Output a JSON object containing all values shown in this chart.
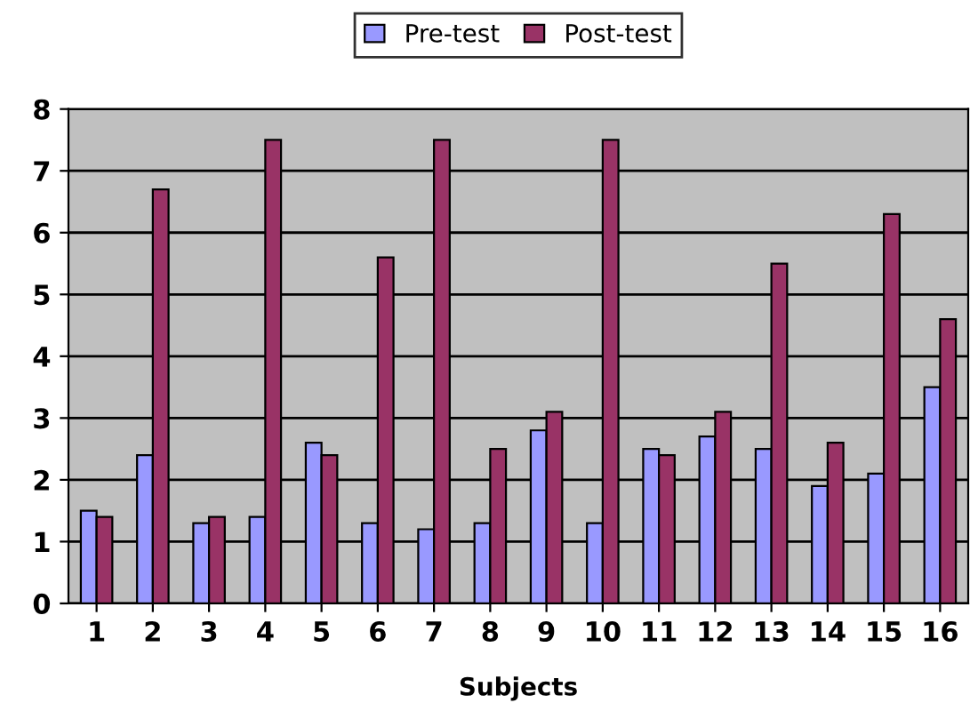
{
  "chart_data": {
    "type": "bar",
    "xlabel": "Subjects",
    "categories": [
      "1",
      "2",
      "3",
      "4",
      "5",
      "6",
      "7",
      "8",
      "9",
      "10",
      "11",
      "12",
      "13",
      "14",
      "15",
      "16"
    ],
    "series": [
      {
        "name": "Pre-test",
        "color": "#9999ff",
        "values": [
          1.5,
          2.4,
          1.3,
          1.4,
          2.6,
          1.3,
          1.2,
          1.3,
          2.8,
          1.3,
          2.5,
          2.7,
          2.5,
          1.9,
          2.1,
          3.5
        ]
      },
      {
        "name": "Post-test",
        "color": "#993366",
        "values": [
          1.4,
          6.7,
          1.4,
          7.5,
          2.4,
          5.6,
          7.5,
          2.5,
          3.1,
          7.5,
          2.4,
          3.1,
          5.5,
          2.6,
          6.3,
          4.6
        ]
      }
    ],
    "ylim": [
      0,
      8
    ],
    "yticks": [
      0,
      1,
      2,
      3,
      4,
      5,
      6,
      7,
      8
    ],
    "grid": "y",
    "legend": "top"
  }
}
